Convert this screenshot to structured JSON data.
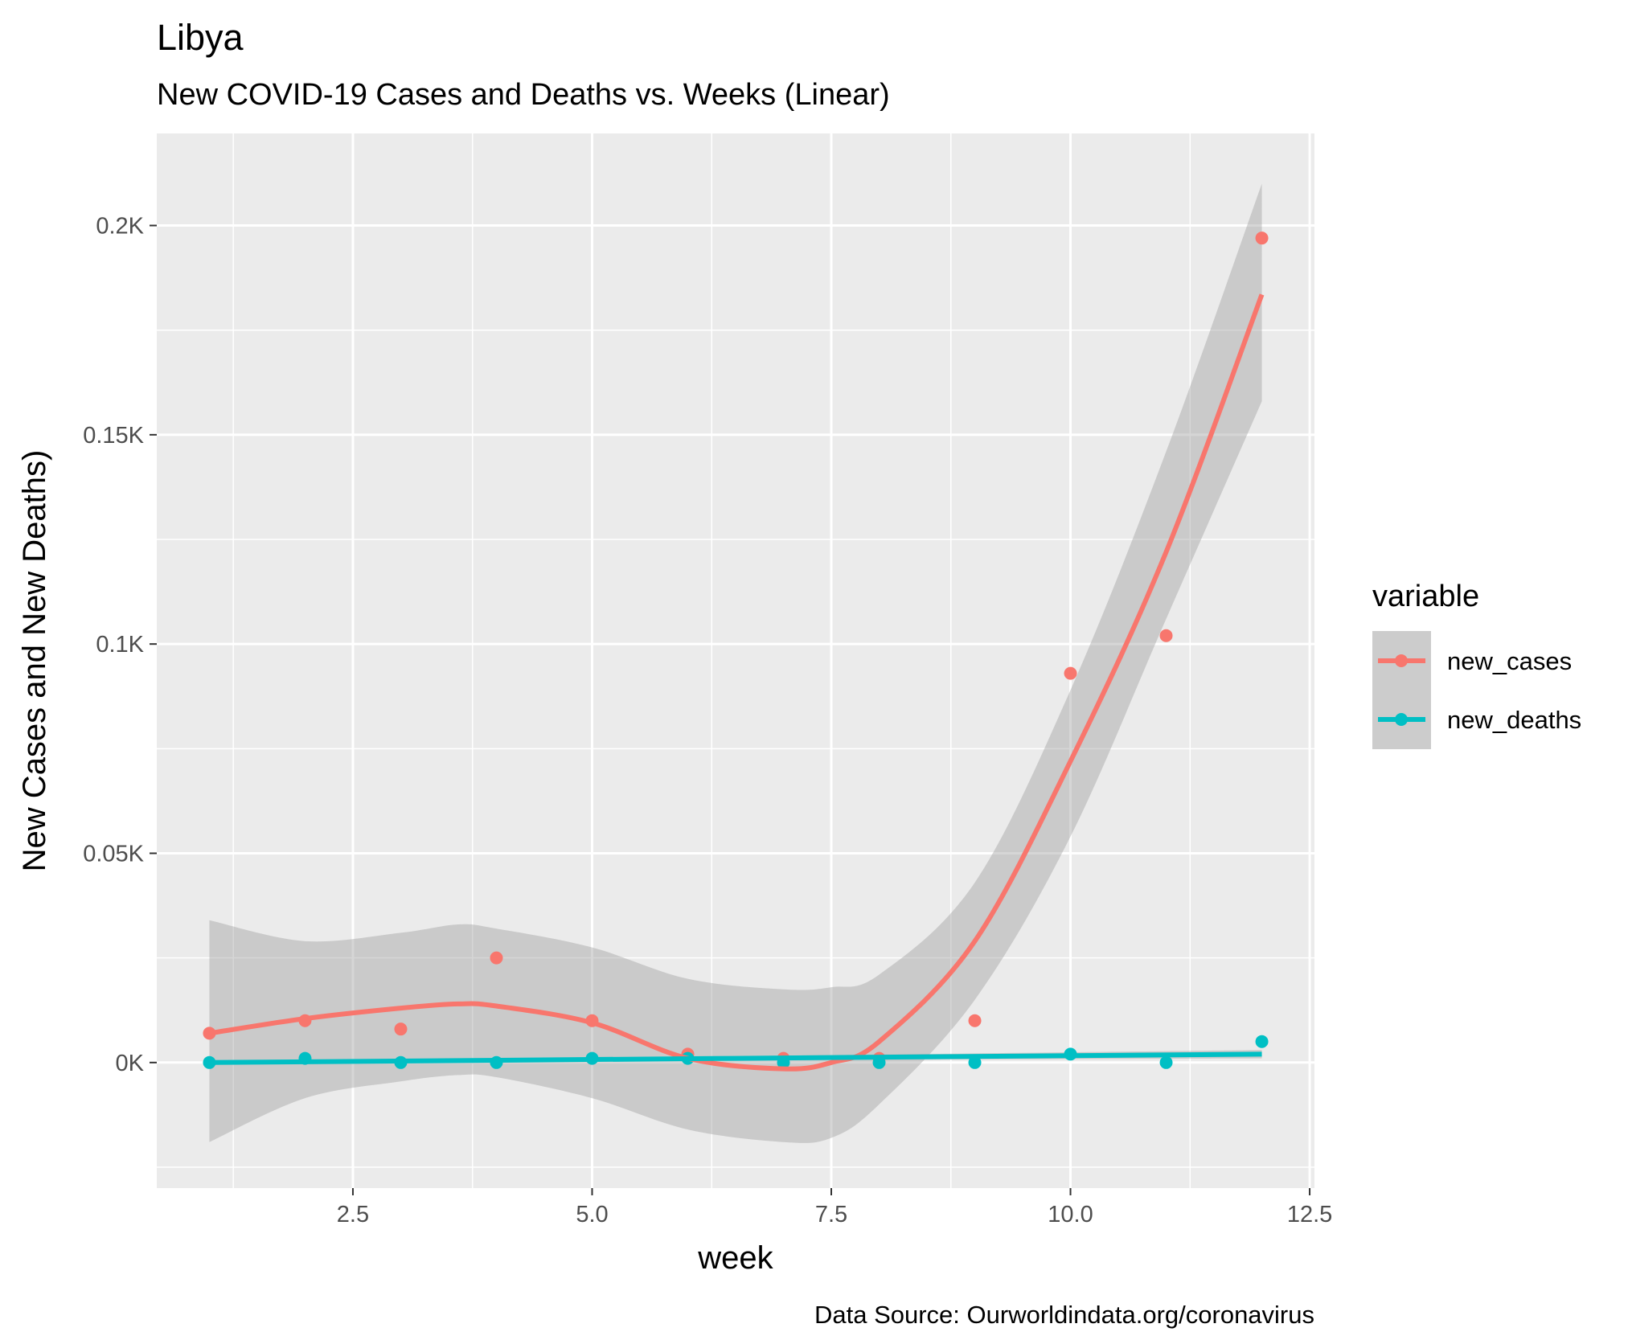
{
  "chart_data": {
    "type": "scatter",
    "title": "Libya",
    "subtitle": "New COVID-19 Cases and Deaths vs. Weeks (Linear)",
    "xlabel": "week",
    "ylabel": "New Cases and New Deaths)",
    "caption": "Data Source: Ourworldindata.org/coronavirus",
    "xlim": [
      0.45,
      12.55
    ],
    "ylim": [
      -30,
      222
    ],
    "x_ticks": [
      2.5,
      5.0,
      7.5,
      10.0,
      12.5
    ],
    "x_tick_labels": [
      "2.5",
      "5.0",
      "7.5",
      "10.0",
      "12.5"
    ],
    "y_ticks": [
      0,
      50,
      100,
      150,
      200
    ],
    "y_tick_labels": [
      "0K",
      "0.05K",
      "0.1K",
      "0.15K",
      "0.2K"
    ],
    "grid": true,
    "legend": {
      "title": "variable",
      "position": "right"
    },
    "colors": {
      "panel": "#ebebeb",
      "ribbon": "#cccccc"
    },
    "series": [
      {
        "name": "new_cases",
        "color": "#f8766d",
        "x": [
          1,
          2,
          3,
          4,
          5,
          6,
          7,
          8,
          9,
          10,
          11,
          12
        ],
        "y": [
          7,
          10,
          8,
          25,
          10,
          2,
          1,
          1,
          10,
          93,
          102,
          197
        ],
        "smooth": {
          "x": [
            1,
            2,
            3,
            3.6,
            4,
            5,
            6,
            7,
            7.5,
            8,
            9,
            10,
            11,
            12
          ],
          "y": [
            7,
            10.5,
            13,
            14,
            13.5,
            9.5,
            1,
            -1.5,
            0,
            5,
            29,
            72,
            122,
            183.5
          ],
          "lower": [
            -19,
            -8.5,
            -4.5,
            -3,
            -3.5,
            -8.5,
            -16,
            -19,
            -18,
            -10,
            15,
            54,
            106,
            158
          ],
          "upper": [
            34,
            29,
            31,
            33,
            32,
            27.5,
            20,
            17.5,
            18,
            21,
            43,
            89,
            146,
            210
          ]
        }
      },
      {
        "name": "new_deaths",
        "color": "#00bfc4",
        "x": [
          1,
          2,
          3,
          4,
          5,
          6,
          7,
          8,
          9,
          10,
          11,
          12
        ],
        "y": [
          0,
          1,
          0,
          0,
          1,
          1,
          0,
          0,
          0,
          2,
          0,
          5
        ],
        "smooth": {
          "x": [
            1,
            12
          ],
          "y": [
            0,
            2
          ],
          "lower": [
            0,
            1
          ],
          "upper": [
            0,
            3
          ]
        }
      }
    ]
  }
}
